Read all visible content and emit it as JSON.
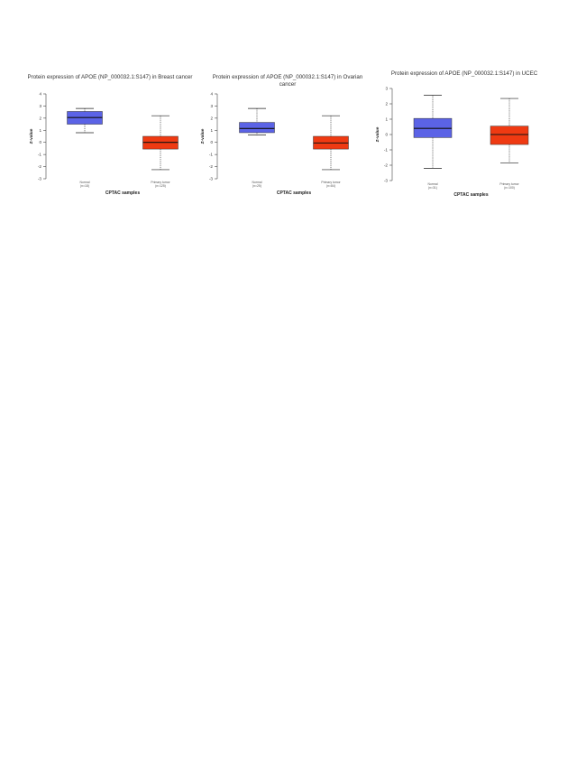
{
  "colors": {
    "normal": "#5b63e6",
    "tumor": "#ef3a12",
    "axis": "#444444",
    "median": "#111111"
  },
  "chart_data": [
    {
      "type": "box",
      "title": "Protein expression of APOE (NP_000032.1:S147) in Breast cancer",
      "xlabel": "CPTAC samples",
      "ylabel": "Z-value",
      "ylim": [
        -3,
        4
      ],
      "yticks": [
        "4",
        "3",
        "2",
        "1",
        "0",
        "-1",
        "-2",
        "-3"
      ],
      "ytick_values": [
        4,
        3,
        2,
        1,
        0,
        -1,
        -2,
        -3
      ],
      "grid": false,
      "series": [
        {
          "name": "Normal",
          "label_lines": [
            "Normal",
            "(n=18)"
          ],
          "color": "normal",
          "whisker_low": 0.8,
          "q1": 1.5,
          "median": 2.05,
          "q3": 2.55,
          "whisker_high": 2.8
        },
        {
          "name": "Primary tumor",
          "label_lines": [
            "Primary tumor",
            "(n=125)"
          ],
          "color": "tumor",
          "whisker_low": -2.25,
          "q1": -0.55,
          "median": 0.0,
          "q3": 0.5,
          "whisker_high": 2.2
        }
      ]
    },
    {
      "type": "box",
      "title": "Protein expression of APOE (NP_000032.1:S147) in Ovarian cancer",
      "xlabel": "CPTAC samples",
      "ylabel": "Z-value",
      "ylim": [
        -3,
        4
      ],
      "yticks": [
        "4",
        "3",
        "2",
        "1",
        "0",
        "-1",
        "-2",
        "-3"
      ],
      "ytick_values": [
        4,
        3,
        2,
        1,
        0,
        -1,
        -2,
        -3
      ],
      "grid": false,
      "series": [
        {
          "name": "Normal",
          "label_lines": [
            "Normal",
            "(n=25)"
          ],
          "color": "normal",
          "whisker_low": 0.6,
          "q1": 0.8,
          "median": 1.15,
          "q3": 1.65,
          "whisker_high": 2.8
        },
        {
          "name": "Primary tumor",
          "label_lines": [
            "Primary tumor",
            "(n=84)"
          ],
          "color": "tumor",
          "whisker_low": -2.25,
          "q1": -0.55,
          "median": -0.05,
          "q3": 0.5,
          "whisker_high": 2.2
        }
      ]
    },
    {
      "type": "box",
      "title": "Protein expression of APOE (NP_000032.1:S147) in UCEC",
      "xlabel": "CPTAC samples",
      "ylabel": "Z-value",
      "ylim": [
        -3,
        3
      ],
      "yticks": [
        "3",
        "2",
        "1",
        "0",
        "-1",
        "-2",
        "-3"
      ],
      "ytick_values": [
        3,
        2,
        1,
        0,
        -1,
        -2,
        -3
      ],
      "grid": false,
      "series": [
        {
          "name": "Normal",
          "label_lines": [
            "Normal",
            "(n=31)"
          ],
          "color": "normal",
          "whisker_low": -2.2,
          "q1": -0.2,
          "median": 0.4,
          "q3": 1.05,
          "whisker_high": 2.55
        },
        {
          "name": "Primary tumor",
          "label_lines": [
            "Primary tumor",
            "(n=100)"
          ],
          "color": "tumor",
          "whisker_low": -1.85,
          "q1": -0.65,
          "median": 0.0,
          "q3": 0.55,
          "whisker_high": 2.35
        }
      ]
    }
  ]
}
